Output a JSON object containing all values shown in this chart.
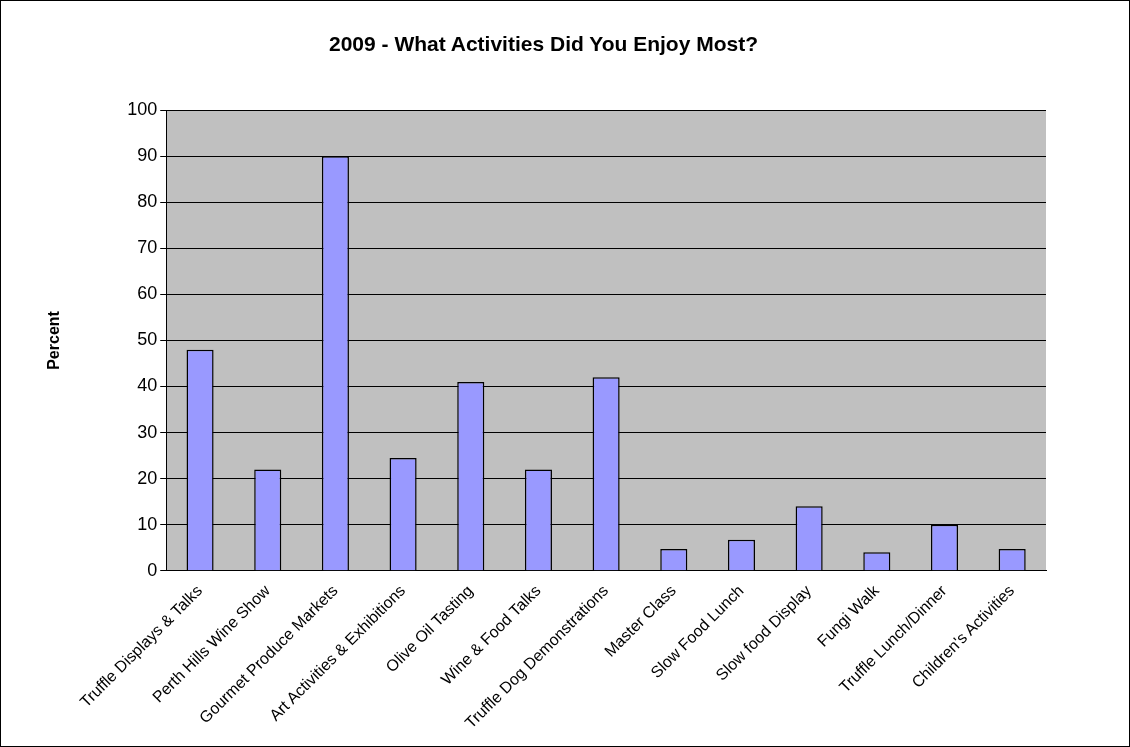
{
  "chart_data": {
    "type": "bar",
    "title": "2009 - What Activities Did You Enjoy Most?",
    "ylabel": "Percent",
    "categories": [
      "Truffle Displays & Talks",
      "Perth Hills Wine Show",
      "Gourmet Produce Markets",
      "Art Activities & Exhibitions",
      "Olive Oil Tasting",
      "Wine & Food Talks",
      "Truffle Dog Demonstrations",
      "Master Class",
      "Slow Food Lunch",
      "Slow food Display",
      "Fungi Walk",
      "Truffle Lunch/Dinner",
      "Children's Activities"
    ],
    "values": [
      48,
      22,
      90,
      24.5,
      41,
      22,
      42,
      4.7,
      6.7,
      14,
      4,
      10,
      4.7
    ],
    "color": "#9999ff",
    "ylim": [
      0,
      100
    ],
    "yticks": [
      0,
      10,
      20,
      30,
      40,
      50,
      60,
      70,
      80,
      90,
      100
    ],
    "grid": "y",
    "legend": false
  }
}
